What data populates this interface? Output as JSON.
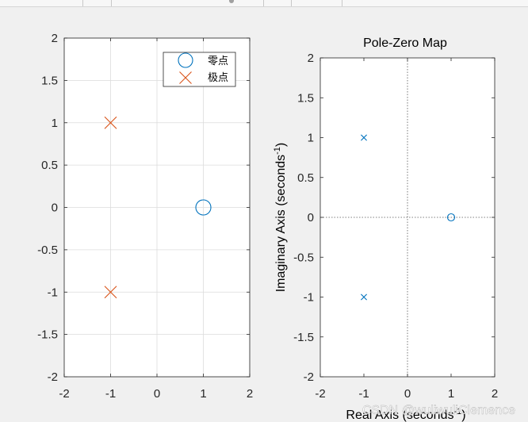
{
  "chart_data": [
    {
      "type": "scatter",
      "title": "",
      "xlabel": "",
      "ylabel": "",
      "xlim": [
        -2,
        2
      ],
      "ylim": [
        -2,
        2
      ],
      "xticks": [
        "-2",
        "-1",
        "0",
        "1",
        "2"
      ],
      "yticks": [
        "2",
        "1.5",
        "1",
        "0.5",
        "0",
        "-0.5",
        "-1",
        "-1.5",
        "-2"
      ],
      "grid": true,
      "legend_position": "top-right",
      "series": [
        {
          "name": "零点",
          "marker": "circle",
          "color": "#0072bd",
          "x": [
            1
          ],
          "y": [
            0
          ]
        },
        {
          "name": "极点",
          "marker": "x",
          "color": "#d95319",
          "x": [
            -1,
            -1
          ],
          "y": [
            1,
            -1
          ]
        }
      ]
    },
    {
      "type": "scatter",
      "title": "Pole-Zero Map",
      "xlabel": "Real Axis (seconds",
      "xlabel_superscript": "-1",
      "xlabel_suffix": ")",
      "ylabel": "Imaginary Axis (seconds",
      "ylabel_superscript": "-1",
      "ylabel_suffix": ")",
      "xlim": [
        -2,
        2
      ],
      "ylim": [
        -2,
        2
      ],
      "xticks": [
        "-2",
        "-1",
        "0",
        "1",
        "2"
      ],
      "yticks": [
        "2",
        "1.5",
        "1",
        "0.5",
        "0",
        "-0.5",
        "-1",
        "-1.5",
        "-2"
      ],
      "grid": false,
      "series": [
        {
          "marker": "circle",
          "color": "#0072bd",
          "x": [
            1
          ],
          "y": [
            0
          ]
        },
        {
          "marker": "x",
          "color": "#0072bd",
          "x": [
            -1,
            -1
          ],
          "y": [
            1,
            -1
          ]
        }
      ]
    }
  ],
  "watermark": "CSDN @wuliwuliClemence"
}
